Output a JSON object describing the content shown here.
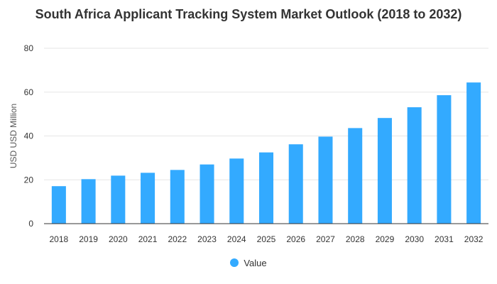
{
  "colors": {
    "bar": "#33aaff",
    "grid": "#e6e6e6",
    "axis": "#333333"
  },
  "chart_data": {
    "type": "bar",
    "title": "South Africa Applicant Tracking System Market Outlook (2018 to 2032)",
    "xlabel": "",
    "ylabel": "USD USD Million",
    "categories": [
      "2018",
      "2019",
      "2020",
      "2021",
      "2022",
      "2023",
      "2024",
      "2025",
      "2026",
      "2027",
      "2028",
      "2029",
      "2030",
      "2031",
      "2032"
    ],
    "series": [
      {
        "name": "Value",
        "values": [
          17.1,
          20.3,
          21.9,
          23.2,
          24.5,
          27.0,
          29.7,
          32.5,
          36.2,
          39.7,
          43.6,
          48.2,
          53.1,
          58.6,
          64.4
        ]
      }
    ],
    "ylim": [
      0,
      80
    ],
    "yticks": [
      0,
      20,
      40,
      60,
      80
    ],
    "grid": true,
    "legend": "bottom-center"
  }
}
